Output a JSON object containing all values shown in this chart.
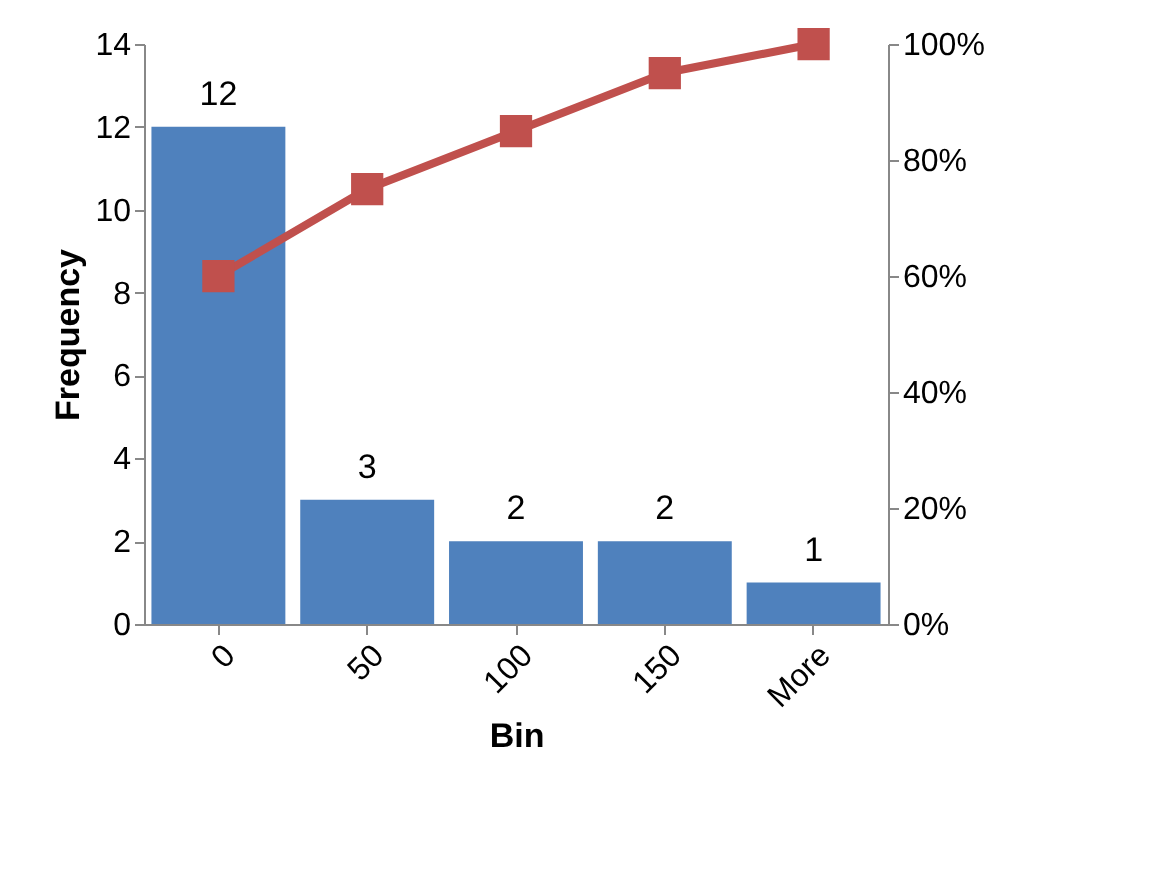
{
  "chart_data": {
    "type": "bar",
    "xlabel": "Bin",
    "ylabel": "Frequency",
    "categories": [
      "0",
      "50",
      "100",
      "150",
      "More"
    ],
    "series": [
      {
        "color": "#4f81bd",
        "values": [
          12,
          3,
          2,
          2,
          1
        ],
        "value_labels": [
          "12",
          "3",
          "2",
          "2",
          "1"
        ]
      },
      {
        "type": "line",
        "axis": "y2",
        "color": "#c0504d",
        "values": [
          60,
          75,
          85,
          95,
          100
        ]
      }
    ],
    "marker": "square",
    "line_style": "solid",
    "ylim": [
      0,
      14
    ],
    "yticks": [
      0,
      2,
      4,
      6,
      8,
      10,
      12,
      14
    ],
    "y2lim": [
      0,
      100
    ],
    "y2ticks": [
      {
        "value": 0,
        "label": "0%"
      },
      {
        "value": 20,
        "label": "20%"
      },
      {
        "value": 40,
        "label": "40%"
      },
      {
        "value": 60,
        "label": "60%"
      },
      {
        "value": 80,
        "label": "80%"
      },
      {
        "value": 100,
        "label": "100%"
      }
    ]
  }
}
